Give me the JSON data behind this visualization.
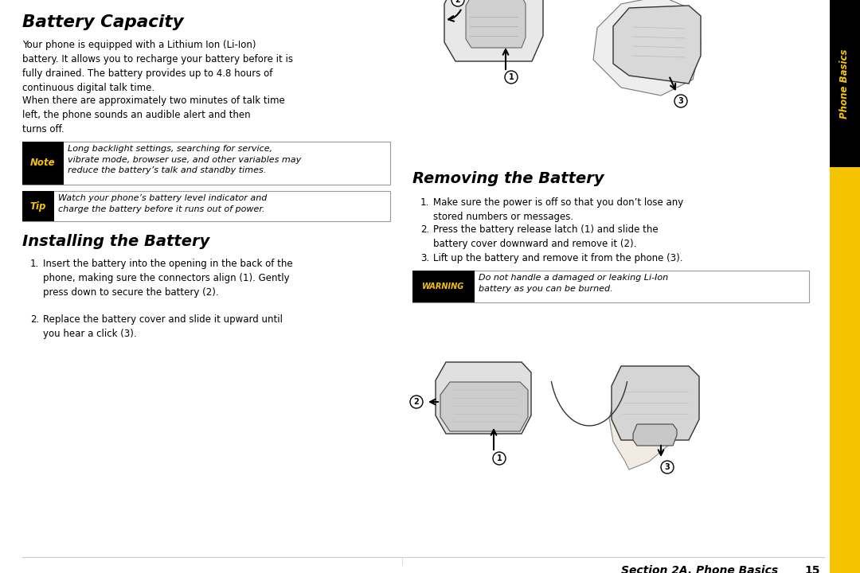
{
  "bg_color": "#ffffff",
  "body_text_color": "#000000",
  "title_color": "#000000",
  "battery_capacity_title": "Battery Capacity",
  "battery_capacity_p1": "Your phone is equipped with a Lithium Ion (Li-Ion)\nbattery. It allows you to recharge your battery before it is\nfully drained. The battery provides up to 4.8 hours of\ncontinuous digital talk time.",
  "battery_capacity_p2": "When there are approximately two minutes of talk time\nleft, the phone sounds an audible alert and then\nturns off.",
  "note_label": "Note",
  "note_text": "Long backlight settings, searching for service,\nvibrate mode, browser use, and other variables may\nreduce the battery’s talk and standby times.",
  "tip_label": "Tip",
  "tip_text": "Watch your phone’s battery level indicator and\ncharge the battery before it runs out of power.",
  "install_title": "Installing the Battery",
  "install_1": "Insert the battery into the opening in the back of the\nphone, making sure the connectors align (1). Gently\npress down to secure the battery (2).",
  "install_2": "Replace the battery cover and slide it upward until\nyou hear a click (3).",
  "remove_title": "Removing the Battery",
  "remove_1": "Make sure the power is off so that you don’t lose any\nstored numbers or messages.",
  "remove_2": "Press the battery release latch (1) and slide the\nbattery cover downward and remove it (2).",
  "remove_3": "Lift up the battery and remove it from the phone (3).",
  "warning_label": "WARNING",
  "warning_text": "Do not handle a damaged or leaking Li-Ion\nbattery as you can be burned.",
  "footer_text": "Section 2A. Phone Basics",
  "footer_page": "15",
  "sidebar_text": "Phone Basics",
  "sidebar_text_color": "#f5c400",
  "sidebar_bg_black": "#000000",
  "sidebar_bg_yellow": "#f5c400",
  "label_bg": "#000000",
  "label_fg": "#f5c400",
  "box_border": "#aaaaaa"
}
